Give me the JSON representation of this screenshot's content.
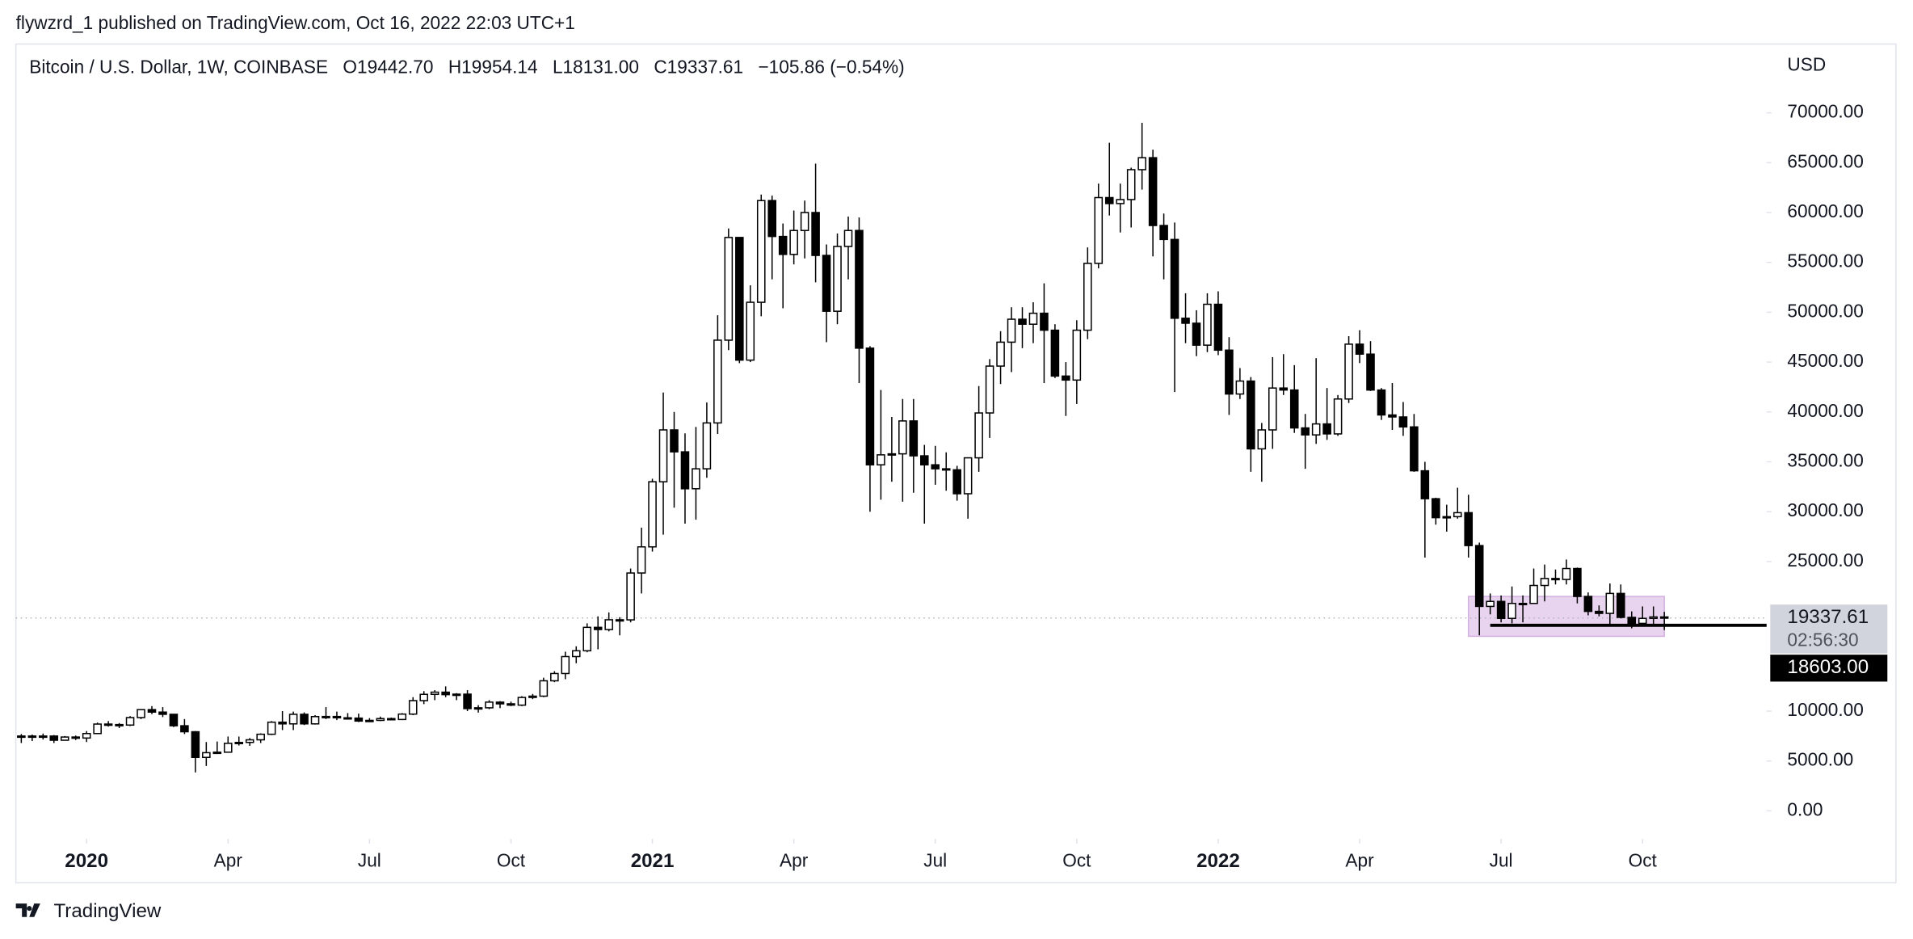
{
  "header": "flywzrd_1 published on TradingView.com, Oct 16, 2022 22:03 UTC+1",
  "footer": "TradingView",
  "chart_data": {
    "type": "candlestick",
    "legend": {
      "symbol": "Bitcoin / U.S. Dollar, 1W, COINBASE",
      "open": "O19442.70",
      "high": "H19954.14",
      "low": "L18131.00",
      "close": "C19337.61",
      "change": "−105.86 (−0.54%)"
    },
    "y_axis_label": "USD",
    "up_color": "#ffffff",
    "down_color": "#000000",
    "wick_color": "#000000",
    "xlim": [
      -0.5,
      160.4
    ],
    "ylim": [
      -2800,
      76900
    ],
    "xticks": [
      {
        "value": 6,
        "label": "2020",
        "major": true
      },
      {
        "value": 19,
        "label": "Apr"
      },
      {
        "value": 32,
        "label": "Jul"
      },
      {
        "value": 45,
        "label": "Oct"
      },
      {
        "value": 58,
        "label": "2021",
        "major": true
      },
      {
        "value": 71,
        "label": "Apr"
      },
      {
        "value": 84,
        "label": "Jul"
      },
      {
        "value": 97,
        "label": "Oct"
      },
      {
        "value": 110,
        "label": "2022",
        "major": true
      },
      {
        "value": 123,
        "label": "Apr"
      },
      {
        "value": 136,
        "label": "Jul"
      },
      {
        "value": 149,
        "label": "Oct"
      }
    ],
    "yticks": [
      {
        "value": 0,
        "label": "0.00"
      },
      {
        "value": 5000,
        "label": "5000.00"
      },
      {
        "value": 10000,
        "label": "10000.00"
      },
      {
        "value": 25000,
        "label": "25000.00"
      },
      {
        "value": 30000,
        "label": "30000.00"
      },
      {
        "value": 35000,
        "label": "35000.00"
      },
      {
        "value": 40000,
        "label": "40000.00"
      },
      {
        "value": 45000,
        "label": "45000.00"
      },
      {
        "value": 50000,
        "label": "50000.00"
      },
      {
        "value": 55000,
        "label": "55000.00"
      },
      {
        "value": 60000,
        "label": "60000.00"
      },
      {
        "value": 65000,
        "label": "65000.00"
      },
      {
        "value": 70000,
        "label": "70000.00"
      }
    ],
    "series": [
      {
        "name": "Bitcoin / U.S. Dollar",
        "open": [
          7400,
          7500,
          7420,
          7500,
          7080,
          7400,
          7300,
          7750,
          8700,
          8650,
          8600,
          9350,
          10150,
          9900,
          9680,
          8530,
          7930,
          5360,
          5830,
          5880,
          6770,
          6860,
          7120,
          7680,
          8890,
          8720,
          9680,
          8720,
          9450,
          9460,
          9330,
          9300,
          9000,
          9070,
          9250,
          9160,
          9700,
          11050,
          11680,
          11900,
          11650,
          11700,
          10250,
          10330,
          10900,
          10730,
          10600,
          11370,
          11500,
          13040,
          13770,
          15470,
          16050,
          18400,
          18180,
          19160,
          19150,
          23850,
          26470,
          33000,
          38200,
          36000,
          32300,
          34300,
          38900,
          47200,
          57500,
          45200,
          51000,
          61200,
          57600,
          55800,
          58200,
          60000,
          55700,
          50100,
          56600,
          58200,
          46400,
          34700,
          35700,
          35800,
          39100,
          35600,
          34700,
          34300,
          34200,
          31800,
          35400,
          39900,
          44600,
          47000,
          49300,
          48800,
          49900,
          48200,
          43600,
          43200,
          48200,
          54900,
          61500,
          60900,
          61300,
          64300,
          65500,
          58700,
          57300,
          49400,
          48900,
          46700,
          50800,
          46200,
          41800,
          43100,
          36300,
          38200,
          42400,
          42200,
          38400,
          37700,
          38800,
          37800,
          41300,
          46800,
          45800,
          42200,
          39700,
          39500,
          38500,
          34100,
          31300,
          29400,
          29500,
          29900,
          26600,
          20500,
          21000,
          19300,
          20800,
          20800,
          22600,
          23300,
          23200,
          24300,
          21500,
          20000,
          19800,
          21800,
          19400,
          18800,
          19300,
          19442.7
        ],
        "high": [
          7700,
          7650,
          7750,
          7600,
          7500,
          7550,
          8000,
          8850,
          9000,
          8800,
          9500,
          10200,
          10500,
          10400,
          9700,
          9200,
          8000,
          6900,
          6950,
          7450,
          7450,
          7300,
          7770,
          9000,
          10000,
          9950,
          9870,
          9600,
          10400,
          9950,
          9800,
          9750,
          9300,
          9450,
          9350,
          9800,
          11400,
          12000,
          12100,
          12480,
          11800,
          12100,
          10600,
          11100,
          11000,
          10950,
          11500,
          11720,
          13350,
          14000,
          15960,
          16500,
          18800,
          19500,
          19900,
          19420,
          24300,
          28400,
          33300,
          41950,
          40000,
          37850,
          38500,
          40950,
          49700,
          58400,
          57500,
          52700,
          61800,
          61700,
          58900,
          60200,
          61200,
          64900,
          56800,
          57900,
          59600,
          59500,
          46600,
          42200,
          39500,
          41300,
          41300,
          36700,
          36600,
          35950,
          34600,
          35400,
          42600,
          45300,
          48100,
          50500,
          50500,
          51000,
          52900,
          48800,
          45000,
          49200,
          56500,
          62900,
          67000,
          62900,
          64500,
          69000,
          66300,
          59900,
          59000,
          51900,
          50200,
          51900,
          52100,
          47500,
          44400,
          43500,
          38900,
          45500,
          45800,
          44700,
          39800,
          45400,
          42400,
          41700,
          47600,
          48200,
          47100,
          42400,
          42900,
          41000,
          39800,
          35000,
          31400,
          30700,
          32400,
          31700,
          26900,
          21800,
          21600,
          22500,
          21600,
          24300,
          24700,
          24200,
          25200,
          24400,
          21900,
          20600,
          22800,
          22700,
          20000,
          20500,
          20500,
          19954.14
        ],
        "low": [
          6800,
          7000,
          7150,
          6800,
          7050,
          7100,
          6900,
          7700,
          8450,
          8300,
          8500,
          9200,
          9700,
          9400,
          8400,
          7700,
          3850,
          4500,
          5700,
          5850,
          6550,
          6520,
          6800,
          7600,
          8100,
          8100,
          8600,
          8650,
          9200,
          9100,
          9200,
          8900,
          8900,
          9000,
          9100,
          9100,
          9600,
          10700,
          11100,
          11400,
          11100,
          10000,
          9850,
          10200,
          10300,
          10500,
          10500,
          11200,
          11400,
          12900,
          13200,
          14800,
          15900,
          16200,
          18000,
          17600,
          18900,
          21800,
          26000,
          27700,
          30400,
          28800,
          29200,
          33400,
          37800,
          46200,
          44900,
          45000,
          49600,
          53300,
          50400,
          54800,
          55400,
          53000,
          47000,
          48800,
          53300,
          42900,
          30000,
          31200,
          33000,
          31000,
          31900,
          28800,
          32700,
          32100,
          31100,
          29300,
          34000,
          37400,
          42800,
          44000,
          46400,
          46900,
          42900,
          43400,
          39600,
          40800,
          47300,
          54400,
          59700,
          58000,
          58500,
          62300,
          55600,
          53300,
          42000,
          46900,
          45600,
          46000,
          45700,
          39700,
          41300,
          34000,
          33000,
          36300,
          41700,
          37900,
          34300,
          36800,
          37200,
          37600,
          40900,
          44900,
          42100,
          39200,
          38200,
          37600,
          34000,
          25400,
          28700,
          28000,
          29300,
          25400,
          17600,
          19700,
          18900,
          18800,
          18900,
          20800,
          21000,
          22700,
          22700,
          20800,
          19600,
          19500,
          18600,
          19300,
          18300,
          18500,
          18700,
          18131
        ],
        "close": [
          7500,
          7420,
          7500,
          7080,
          7400,
          7300,
          7750,
          8700,
          8650,
          8600,
          9350,
          10150,
          9900,
          9680,
          8530,
          7930,
          5360,
          5830,
          5880,
          6770,
          6860,
          7120,
          7680,
          8890,
          8720,
          9680,
          8720,
          9450,
          9460,
          9330,
          9300,
          9000,
          9070,
          9250,
          9160,
          9700,
          11050,
          11680,
          11900,
          11650,
          11700,
          10250,
          10330,
          10900,
          10730,
          10600,
          11370,
          11500,
          13040,
          13770,
          15470,
          16050,
          18400,
          18180,
          19160,
          19150,
          23850,
          26470,
          33000,
          38200,
          36000,
          32300,
          34300,
          38900,
          47200,
          57500,
          45200,
          51000,
          61200,
          57600,
          55800,
          58200,
          60000,
          55700,
          50100,
          56600,
          58200,
          46400,
          34700,
          35700,
          35800,
          39100,
          35600,
          34700,
          34300,
          34200,
          31800,
          35400,
          39900,
          44600,
          47000,
          49300,
          48800,
          49900,
          48200,
          43600,
          43200,
          48200,
          54900,
          61500,
          60900,
          61300,
          64300,
          65500,
          58700,
          57300,
          49400,
          48900,
          46700,
          50800,
          46200,
          41800,
          43100,
          36300,
          38200,
          42400,
          42200,
          38400,
          37700,
          38800,
          37800,
          41300,
          46800,
          45800,
          42200,
          39700,
          39500,
          38500,
          34100,
          31300,
          29400,
          29500,
          29900,
          26600,
          20500,
          21000,
          19300,
          20800,
          20800,
          22600,
          23300,
          23200,
          24300,
          21500,
          20000,
          19800,
          21800,
          19400,
          18800,
          19300,
          19442.7,
          19337.61
        ]
      }
    ],
    "last_price": {
      "value": 19337.61,
      "label": "19337.61",
      "countdown": "02:56:30"
    },
    "level": {
      "value": 18603,
      "label": "18603.00",
      "start": 135
    },
    "zone": {
      "x0": 133,
      "x1": 151,
      "y0": 17500,
      "y1": 21500,
      "color": "#e1c6ea"
    }
  }
}
